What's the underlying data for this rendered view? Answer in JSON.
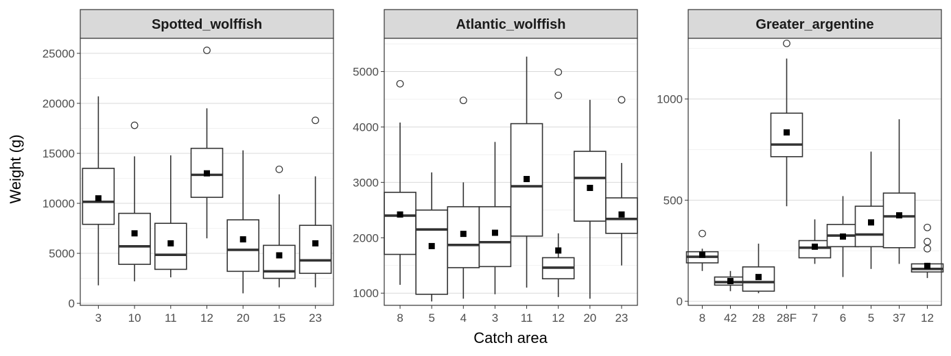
{
  "chart_data": {
    "type": "boxplot",
    "xlabel": "Catch area",
    "ylabel": "Weight (g)",
    "colors": {
      "strip_fill": "#d9d9d9",
      "panel_border": "#333333",
      "grid_major": "#d9d9d9",
      "grid_minor": "#eeeeee",
      "box_line": "#333333",
      "mean_marker": "#000000"
    },
    "panels": [
      {
        "title": "Spotted_wolffish",
        "ylim": [
          -200,
          26500
        ],
        "yticks": [
          0,
          5000,
          10000,
          15000,
          20000,
          25000
        ],
        "ytick_labels": [
          "0",
          "5000",
          "10000",
          "15000",
          "20000",
          "25000"
        ],
        "categories": [
          {
            "label": "3",
            "min": 1800,
            "q1": 7900,
            "median": 10150,
            "q3": 13500,
            "max": 20700,
            "mean": 10500,
            "outliers": []
          },
          {
            "label": "10",
            "min": 2200,
            "q1": 3900,
            "median": 5700,
            "q3": 9000,
            "max": 14700,
            "mean": 7000,
            "outliers": [
              17800
            ]
          },
          {
            "label": "11",
            "min": 2600,
            "q1": 3400,
            "median": 4850,
            "q3": 8000,
            "max": 14800,
            "mean": 6000,
            "outliers": []
          },
          {
            "label": "12",
            "min": 6500,
            "q1": 10600,
            "median": 12850,
            "q3": 15500,
            "max": 19500,
            "mean": 13000,
            "outliers": [
              25300
            ]
          },
          {
            "label": "20",
            "min": 1000,
            "q1": 3200,
            "median": 5350,
            "q3": 8350,
            "max": 15300,
            "mean": 6400,
            "outliers": []
          },
          {
            "label": "15",
            "min": 1600,
            "q1": 2500,
            "median": 3200,
            "q3": 5800,
            "max": 10900,
            "mean": 4800,
            "outliers": [
              13400
            ]
          },
          {
            "label": "23",
            "min": 1600,
            "q1": 3000,
            "median": 4300,
            "q3": 7800,
            "max": 12700,
            "mean": 6000,
            "outliers": [
              18300
            ]
          }
        ]
      },
      {
        "title": "Atlantic_wolffish",
        "ylim": [
          780,
          5600
        ],
        "yticks": [
          1000,
          2000,
          3000,
          4000,
          5000
        ],
        "ytick_labels": [
          "1000",
          "2000",
          "3000",
          "4000",
          "5000"
        ],
        "categories": [
          {
            "label": "8",
            "min": 1150,
            "q1": 1700,
            "median": 2400,
            "q3": 2820,
            "max": 4080,
            "mean": 2420,
            "outliers": [
              4780
            ]
          },
          {
            "label": "5",
            "min": 850,
            "q1": 980,
            "median": 2150,
            "q3": 2500,
            "max": 3180,
            "mean": 1850,
            "outliers": []
          },
          {
            "label": "4",
            "min": 900,
            "q1": 1460,
            "median": 1870,
            "q3": 2560,
            "max": 3000,
            "mean": 2070,
            "outliers": [
              4480
            ]
          },
          {
            "label": "3",
            "min": 980,
            "q1": 1480,
            "median": 1920,
            "q3": 2560,
            "max": 3730,
            "mean": 2090,
            "outliers": []
          },
          {
            "label": "11",
            "min": 1100,
            "q1": 2030,
            "median": 2930,
            "q3": 4060,
            "max": 5270,
            "mean": 3060,
            "outliers": []
          },
          {
            "label": "12",
            "min": 930,
            "q1": 1260,
            "median": 1460,
            "q3": 1640,
            "max": 2080,
            "mean": 1770,
            "outliers": [
              4570,
              4990
            ]
          },
          {
            "label": "20",
            "min": 900,
            "q1": 2300,
            "median": 3080,
            "q3": 3560,
            "max": 4490,
            "mean": 2900,
            "outliers": []
          },
          {
            "label": "23",
            "min": 1500,
            "q1": 2080,
            "median": 2340,
            "q3": 2720,
            "max": 3350,
            "mean": 2420,
            "outliers": [
              4490
            ]
          }
        ]
      },
      {
        "title": "Greater_argentine",
        "ylim": [
          -20,
          1300
        ],
        "yticks": [
          0,
          500,
          1000
        ],
        "ytick_labels": [
          "0",
          "500",
          "1000"
        ],
        "categories": [
          {
            "label": "8",
            "min": 150,
            "q1": 190,
            "median": 220,
            "q3": 245,
            "max": 260,
            "mean": 230,
            "outliers": [
              335
            ]
          },
          {
            "label": "42",
            "min": 50,
            "q1": 80,
            "median": 95,
            "q3": 120,
            "max": 150,
            "mean": 100,
            "outliers": []
          },
          {
            "label": "28",
            "min": 40,
            "q1": 50,
            "median": 95,
            "q3": 170,
            "max": 285,
            "mean": 120,
            "outliers": []
          },
          {
            "label": "28F",
            "min": 470,
            "q1": 715,
            "median": 775,
            "q3": 930,
            "max": 1200,
            "mean": 835,
            "outliers": [
              1275
            ]
          },
          {
            "label": "7",
            "min": 185,
            "q1": 215,
            "median": 265,
            "q3": 300,
            "max": 405,
            "mean": 270,
            "outliers": []
          },
          {
            "label": "6",
            "min": 120,
            "q1": 270,
            "median": 325,
            "q3": 380,
            "max": 520,
            "mean": 320,
            "outliers": []
          },
          {
            "label": "5",
            "min": 160,
            "q1": 270,
            "median": 330,
            "q3": 470,
            "max": 740,
            "mean": 390,
            "outliers": []
          },
          {
            "label": "37",
            "min": 185,
            "q1": 265,
            "median": 420,
            "q3": 535,
            "max": 900,
            "mean": 425,
            "outliers": []
          },
          {
            "label": "12",
            "min": 115,
            "q1": 145,
            "median": 160,
            "q3": 185,
            "max": 190,
            "mean": 175,
            "outliers": [
              260,
              295,
              365
            ]
          }
        ]
      }
    ]
  }
}
